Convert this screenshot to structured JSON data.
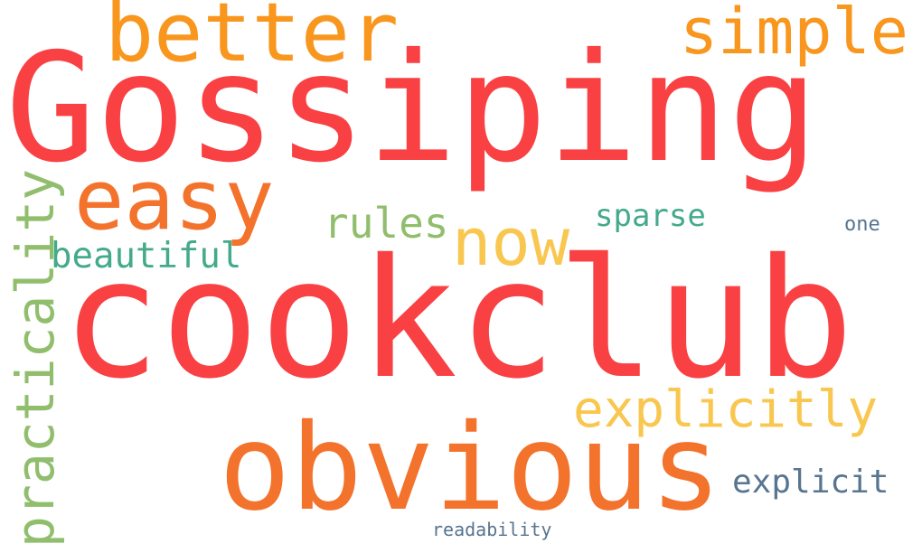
{
  "colors": {
    "red": "#f94144",
    "orange": "#f3722c",
    "amber": "#f8961e",
    "yellow": "#f9c74f",
    "green": "#90be6d",
    "teal": "#43aa8b",
    "slate": "#577590"
  },
  "words": {
    "gossiping": "Gossiping",
    "cookclub": "cookclub",
    "obvious": "obvious",
    "better": "better",
    "easy": "easy",
    "simple": "simple",
    "practicality": "practicality",
    "now": "now",
    "rules": "rules",
    "explicitly": "explicitly",
    "beautiful": "beautiful",
    "sparse": "sparse",
    "explicit": "explicit",
    "one": "one",
    "readability": "readability"
  }
}
